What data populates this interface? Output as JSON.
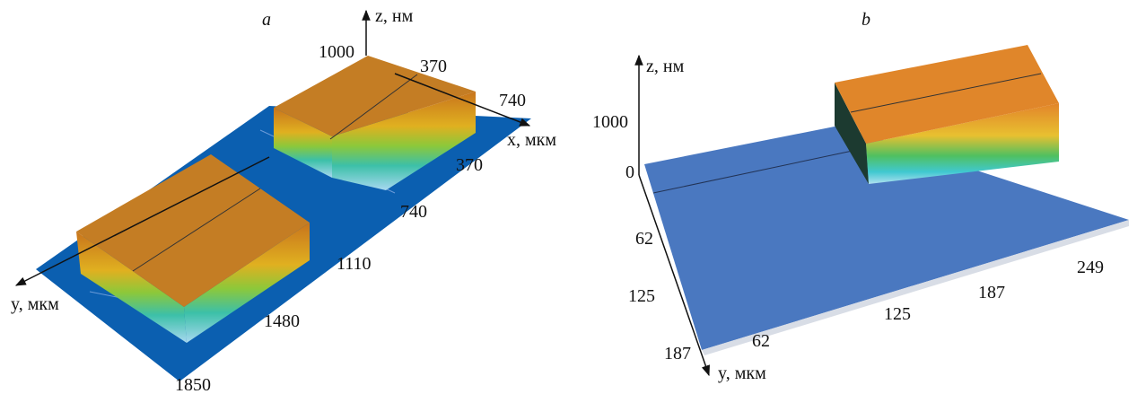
{
  "panels": [
    {
      "label": "a",
      "axes": {
        "z": "z, нм",
        "x": "x, мкм",
        "y": "y, мкм"
      },
      "z_ticks": [
        1000
      ],
      "x_ticks": [
        370,
        740
      ],
      "y_ticks": [
        370,
        740,
        1110,
        1480,
        1850
      ]
    },
    {
      "label": "b",
      "axes": {
        "z": "z, нм",
        "y": "y, мкм"
      },
      "z_ticks": [
        1000,
        0
      ],
      "y_ticks": [
        62,
        125,
        187
      ],
      "x_ticks": [
        62,
        125,
        187,
        249
      ]
    }
  ]
}
